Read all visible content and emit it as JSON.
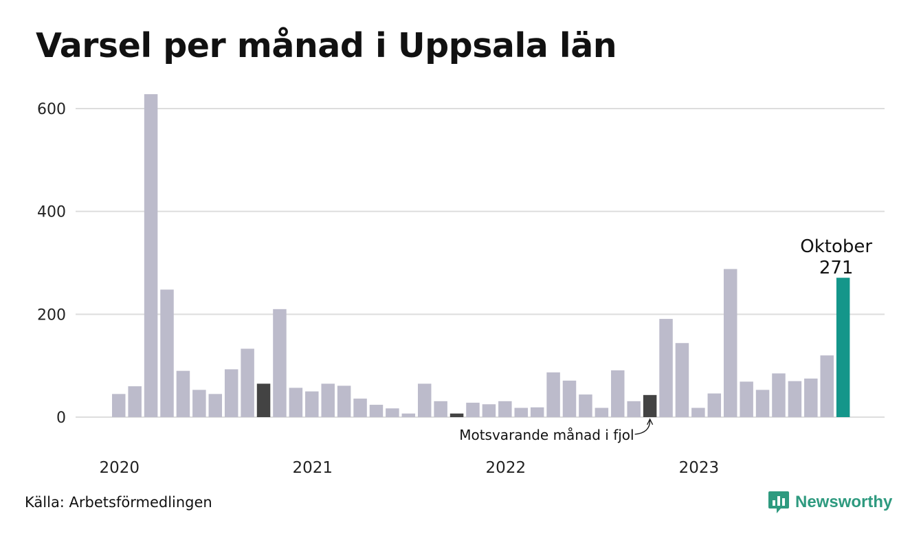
{
  "title": "Varsel per månad i Uppsala län",
  "source": "Källa: Arbetsförmedlingen",
  "brand": {
    "name": "Newsworthy",
    "icon": "newsworthy-logo-icon"
  },
  "colors": {
    "bar": "#bcbbcb",
    "comparison_bar": "#434343",
    "highlight_bar": "#14968a",
    "grid": "#dddddd",
    "brand": "#2e9a7f"
  },
  "chart_data": {
    "type": "bar",
    "x": [
      "2020-01",
      "2020-02",
      "2020-03",
      "2020-04",
      "2020-05",
      "2020-06",
      "2020-07",
      "2020-08",
      "2020-09",
      "2020-10",
      "2020-11",
      "2020-12",
      "2021-01",
      "2021-02",
      "2021-03",
      "2021-04",
      "2021-05",
      "2021-06",
      "2021-07",
      "2021-08",
      "2021-09",
      "2021-10",
      "2021-11",
      "2021-12",
      "2022-01",
      "2022-02",
      "2022-03",
      "2022-04",
      "2022-05",
      "2022-06",
      "2022-07",
      "2022-08",
      "2022-09",
      "2022-10",
      "2022-11",
      "2022-12",
      "2023-01",
      "2023-02",
      "2023-03",
      "2023-04",
      "2023-05",
      "2023-06",
      "2023-07",
      "2023-08",
      "2023-09",
      "2023-10"
    ],
    "values": [
      45,
      60,
      628,
      248,
      90,
      53,
      45,
      93,
      133,
      65,
      210,
      57,
      50,
      65,
      61,
      36,
      24,
      17,
      7,
      65,
      31,
      7,
      28,
      25,
      31,
      18,
      19,
      87,
      71,
      44,
      18,
      91,
      31,
      43,
      191,
      144,
      18,
      46,
      288,
      69,
      53,
      85,
      70,
      75,
      120,
      271
    ],
    "comparison_months": [
      "2020-10",
      "2021-10",
      "2022-10"
    ],
    "highlight_month": "2023-10",
    "highlight_label": "Oktober",
    "highlight_value_label": "271",
    "annotation": "Motsvarande månad i fjol",
    "y_ticks": [
      0,
      200,
      400,
      600
    ],
    "ylim": [
      0,
      640
    ],
    "year_labels": [
      "2020",
      "2021",
      "2022",
      "2023"
    ],
    "grid": true
  }
}
